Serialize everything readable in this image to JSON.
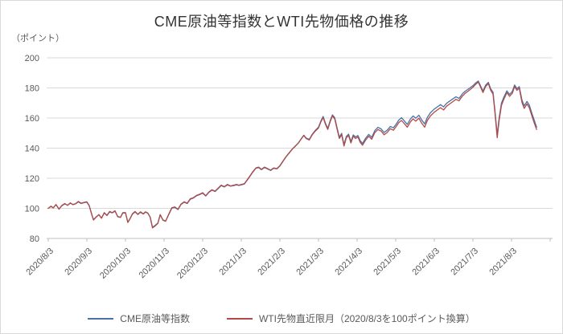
{
  "title": "CME原油等指数とWTI先物価格の推移",
  "y_unit_label": "（ポイント）",
  "legend": [
    {
      "label": "CME原油等指数",
      "color": "#4a72a8"
    },
    {
      "label": "WTI先物直近限月（2020/8/3を100ポイント換算）",
      "color": "#b04a47"
    }
  ],
  "colors": {
    "grid": "#d9d9d9",
    "axis": "#bfbfbf",
    "tick_text": "#595959",
    "title_text": "#333333",
    "background": "#ffffff",
    "cme_line": "#4a72a8",
    "wti_line": "#b04a47"
  },
  "chart_data": {
    "type": "line",
    "title": "CME原油等指数とWTI先物価格の推移",
    "xlabel": "",
    "ylabel": "（ポイント）",
    "ylim": [
      80,
      200
    ],
    "yticks": [
      200,
      180,
      160,
      140,
      120,
      100,
      80
    ],
    "grid": "horizontal",
    "legend_position": "bottom",
    "x_unit": "months since 2020/8/3",
    "xlim_months": [
      0,
      13
    ],
    "xtick_labels": [
      "2020/8/3",
      "2020/9/3",
      "2020/10/3",
      "2020/11/3",
      "2020/12/3",
      "2021/1/3",
      "2021/2/3",
      "2021/3/3",
      "2021/4/3",
      "2021/5/3",
      "2021/6/3",
      "2021/7/3",
      "2021/8/3"
    ],
    "x": [
      0.0,
      0.07,
      0.13,
      0.2,
      0.28,
      0.35,
      0.43,
      0.5,
      0.57,
      0.64,
      0.71,
      0.78,
      0.85,
      0.93,
      1.0,
      1.06,
      1.12,
      1.17,
      1.24,
      1.31,
      1.38,
      1.45,
      1.52,
      1.59,
      1.66,
      1.73,
      1.8,
      1.87,
      1.93,
      2.0,
      2.06,
      2.12,
      2.18,
      2.25,
      2.32,
      2.39,
      2.46,
      2.52,
      2.58,
      2.64,
      2.7,
      2.77,
      2.84,
      2.9,
      2.97,
      3.04,
      3.12,
      3.2,
      3.28,
      3.36,
      3.44,
      3.52,
      3.6,
      3.68,
      3.76,
      3.84,
      3.92,
      4.0,
      4.08,
      4.16,
      4.24,
      4.32,
      4.4,
      4.48,
      4.56,
      4.64,
      4.72,
      4.8,
      4.88,
      4.94,
      5.0,
      5.08,
      5.15,
      5.22,
      5.3,
      5.38,
      5.45,
      5.52,
      5.6,
      5.68,
      5.76,
      5.84,
      5.92,
      6.0,
      6.08,
      6.16,
      6.24,
      6.32,
      6.4,
      6.48,
      6.56,
      6.62,
      6.68,
      6.76,
      6.84,
      6.92,
      7.0,
      7.06,
      7.12,
      7.18,
      7.24,
      7.3,
      7.36,
      7.42,
      7.48,
      7.54,
      7.6,
      7.66,
      7.72,
      7.78,
      7.84,
      7.9,
      7.96,
      8.02,
      8.08,
      8.14,
      8.22,
      8.3,
      8.38,
      8.46,
      8.54,
      8.62,
      8.7,
      8.78,
      8.86,
      8.94,
      9.0,
      9.08,
      9.15,
      9.22,
      9.3,
      9.38,
      9.45,
      9.52,
      9.6,
      9.68,
      9.75,
      9.82,
      9.9,
      10.0,
      10.08,
      10.16,
      10.24,
      10.32,
      10.4,
      10.48,
      10.56,
      10.64,
      10.72,
      10.8,
      10.88,
      11.0,
      11.07,
      11.14,
      11.2,
      11.26,
      11.33,
      11.4,
      11.46,
      11.52,
      11.57,
      11.63,
      11.68,
      11.74,
      11.8,
      11.88,
      11.95,
      12.02,
      12.08,
      12.14,
      12.2,
      12.27,
      12.33,
      12.4,
      12.46,
      12.52,
      12.58,
      12.65
    ],
    "series": [
      {
        "name": "CME原油等指数",
        "color": "#4a72a8",
        "values": [
          100.0,
          101.3,
          100.4,
          102.4,
          99.6,
          101.7,
          103.0,
          102.1,
          103.4,
          102.6,
          103.0,
          104.3,
          103.2,
          103.8,
          104.1,
          101.7,
          96.6,
          92.5,
          94.3,
          95.7,
          93.6,
          96.9,
          95.2,
          97.6,
          97.0,
          98.1,
          94.6,
          94.1,
          96.8,
          97.0,
          90.9,
          93.3,
          96.1,
          97.6,
          95.9,
          97.4,
          96.2,
          97.5,
          96.7,
          94.3,
          87.4,
          88.7,
          90.3,
          95.6,
          92.3,
          91.6,
          95.9,
          100.1,
          100.6,
          99.2,
          102.6,
          104.1,
          103.2,
          106.1,
          106.9,
          108.3,
          109.1,
          110.1,
          108.2,
          110.6,
          112.1,
          111.2,
          113.1,
          115.1,
          114.2,
          115.6,
          114.7,
          115.1,
          115.6,
          115.2,
          115.6,
          116.1,
          118.6,
          121.1,
          124.1,
          126.6,
          127.1,
          125.7,
          127.1,
          126.2,
          125.2,
          126.6,
          126.2,
          128.1,
          131.2,
          134.2,
          136.7,
          139.3,
          141.3,
          143.4,
          146.5,
          148.6,
          146.7,
          145.8,
          149.3,
          151.9,
          154.0,
          158.0,
          161.0,
          156.6,
          153.1,
          158.1,
          162.1,
          160.2,
          153.7,
          147.3,
          149.8,
          142.4,
          147.8,
          149.3,
          144.4,
          148.8,
          147.4,
          148.4,
          145.0,
          143.1,
          146.6,
          149.1,
          147.2,
          151.7,
          153.8,
          152.8,
          150.4,
          151.9,
          154.4,
          153.5,
          155.5,
          158.6,
          160.2,
          158.2,
          155.8,
          159.3,
          161.4,
          159.9,
          161.9,
          158.5,
          156.1,
          160.5,
          163.5,
          166.0,
          167.4,
          168.9,
          167.4,
          169.8,
          171.3,
          172.7,
          174.1,
          173.0,
          175.9,
          177.8,
          179.2,
          181.5,
          183.3,
          184.6,
          181.3,
          177.9,
          181.8,
          183.7,
          179.4,
          177.1,
          165.0,
          148.8,
          160.1,
          169.9,
          173.8,
          178.1,
          175.7,
          177.7,
          181.9,
          179.5,
          180.9,
          171.9,
          168.1,
          171.0,
          168.6,
          163.7,
          159.2,
          153.9
        ]
      },
      {
        "name": "WTI先物直近限月（2020/8/3を100ポイント換算）",
        "color": "#b04a47",
        "values": [
          100.0,
          101.5,
          100.2,
          102.6,
          99.4,
          101.9,
          103.2,
          101.9,
          103.7,
          102.4,
          103.2,
          104.6,
          103.4,
          104.0,
          104.4,
          101.9,
          96.4,
          92.2,
          94.1,
          95.9,
          93.4,
          97.2,
          95.4,
          97.9,
          97.2,
          98.4,
          94.4,
          93.9,
          97.1,
          97.2,
          90.6,
          93.1,
          96.4,
          97.9,
          96.1,
          97.7,
          96.4,
          97.7,
          96.9,
          94.1,
          87.0,
          88.4,
          90.1,
          95.9,
          92.1,
          91.4,
          96.1,
          100.4,
          100.9,
          99.4,
          102.9,
          104.4,
          103.4,
          106.4,
          107.1,
          108.6,
          109.4,
          110.4,
          108.4,
          110.9,
          112.4,
          111.4,
          113.4,
          115.4,
          114.4,
          115.9,
          114.9,
          115.4,
          115.9,
          115.4,
          115.9,
          116.4,
          118.9,
          121.4,
          124.4,
          126.9,
          127.4,
          125.9,
          127.4,
          126.4,
          125.4,
          126.9,
          126.4,
          128.4,
          131.4,
          134.4,
          136.9,
          139.4,
          141.4,
          143.4,
          146.4,
          148.4,
          146.4,
          145.4,
          148.9,
          151.4,
          153.4,
          157.4,
          160.4,
          155.9,
          152.4,
          157.4,
          161.4,
          159.4,
          152.9,
          146.4,
          148.9,
          141.4,
          146.9,
          148.4,
          143.4,
          147.9,
          146.4,
          147.4,
          143.9,
          141.9,
          145.4,
          147.9,
          145.9,
          150.4,
          152.4,
          151.4,
          148.9,
          150.4,
          152.9,
          151.9,
          153.9,
          156.9,
          158.4,
          156.4,
          153.9,
          157.4,
          159.4,
          157.9,
          159.9,
          156.4,
          153.9,
          158.4,
          161.4,
          163.9,
          165.4,
          166.9,
          165.4,
          167.9,
          169.4,
          170.9,
          172.4,
          171.4,
          174.4,
          176.4,
          177.9,
          180.4,
          182.4,
          183.9,
          180.4,
          176.9,
          180.9,
          182.9,
          178.4,
          175.9,
          163.4,
          146.9,
          158.4,
          168.4,
          172.4,
          176.9,
          174.4,
          176.4,
          180.9,
          178.4,
          179.9,
          170.4,
          166.4,
          169.4,
          166.9,
          161.9,
          157.4,
          152.4
        ]
      }
    ]
  }
}
